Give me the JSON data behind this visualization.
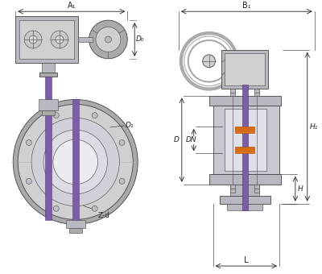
{
  "bg_color": "#ffffff",
  "line_color": "#444444",
  "purple_color": "#7b5ea7",
  "orange_color": "#e07820",
  "gray_light": "#d0d0d0",
  "gray_mid": "#aaaaaa",
  "gray_dark": "#888888",
  "gray_body": "#b8b8c0",
  "gray_fill": "#c8c8d0",
  "dim_color": "#222222",
  "labels": {
    "A1": "A₁",
    "B1": "B₁",
    "D0": "D₀",
    "D1": "D₁",
    "D": "D",
    "DN": "DN",
    "H1": "H₁",
    "H": "H",
    "L": "L",
    "Zd": "Z-d"
  },
  "figsize": [
    4.0,
    3.4
  ],
  "dpi": 100,
  "xlim": [
    0,
    400
  ],
  "ylim": [
    340,
    0
  ]
}
